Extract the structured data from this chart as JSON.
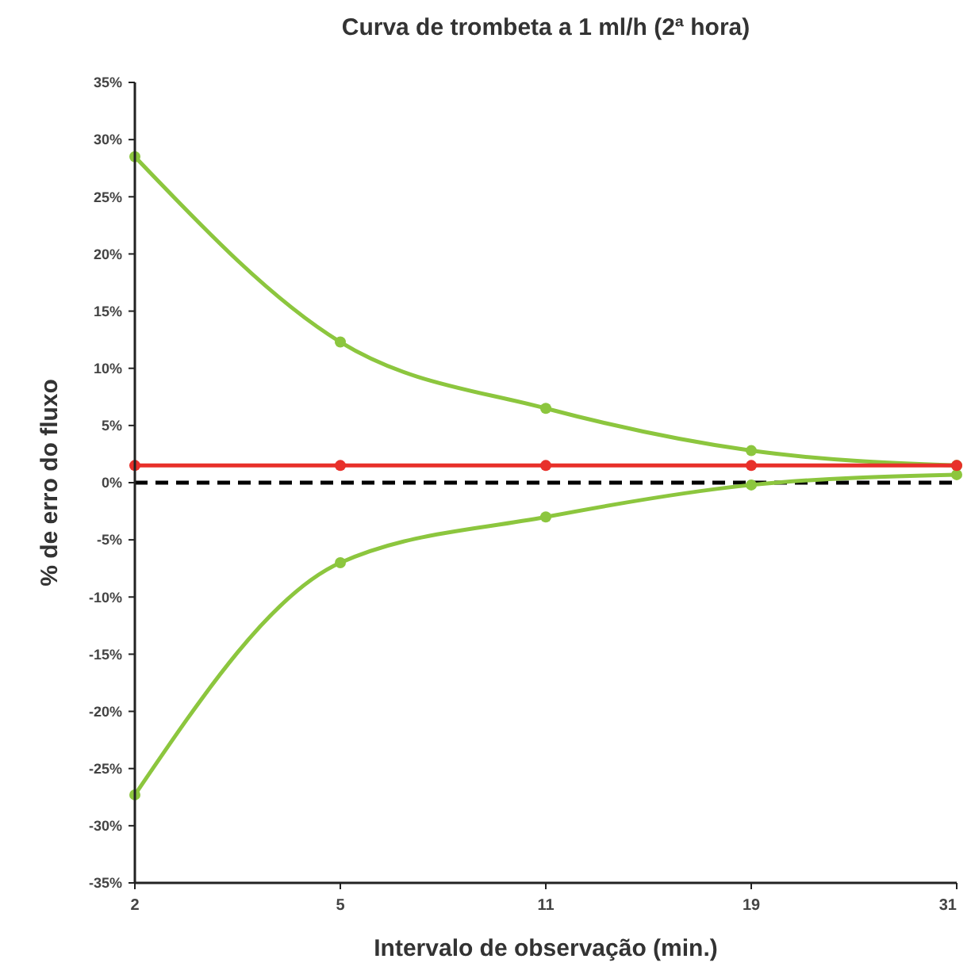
{
  "chart_data": {
    "type": "line",
    "title": "Curva de trombeta a 1 ml/h (2ª hora)",
    "xlabel": "Intervalo de observação (min.)",
    "ylabel": "% de erro do fluxo",
    "categories": [
      "2",
      "5",
      "11",
      "19",
      "31"
    ],
    "series": [
      {
        "color": "#8cc63e",
        "values": [
          28.5,
          12.3,
          6.5,
          2.8,
          1.5
        ]
      },
      {
        "color": "#8cc63e",
        "values": [
          -27.3,
          -7.0,
          -3.0,
          -0.2,
          0.7
        ]
      },
      {
        "color": "#e8302a",
        "values": [
          1.5,
          1.5,
          1.5,
          1.5,
          1.5
        ]
      }
    ],
    "ylim": [
      -35,
      35
    ],
    "yticks": [
      {
        "value": -35,
        "label": "-35%"
      },
      {
        "value": -30,
        "label": "-30%"
      },
      {
        "value": -25,
        "label": "-25%"
      },
      {
        "value": -20,
        "label": "-20%"
      },
      {
        "value": -15,
        "label": "-15%"
      },
      {
        "value": -10,
        "label": "-10%"
      },
      {
        "value": -5,
        "label": "-5%"
      },
      {
        "value": 0,
        "label": "0%"
      },
      {
        "value": 5,
        "label": "5%"
      },
      {
        "value": 10,
        "label": "10%"
      },
      {
        "value": 15,
        "label": "15%"
      },
      {
        "value": 20,
        "label": "20%"
      },
      {
        "value": 25,
        "label": "25%"
      },
      {
        "value": 30,
        "label": "30%"
      },
      {
        "value": 35,
        "label": "35%"
      }
    ],
    "ref_lines": [
      {
        "axis": "y",
        "value": 0,
        "color": "#000000",
        "line_style": "dashed"
      }
    ],
    "marker": "circle",
    "line_style": "solid",
    "grid": false
  }
}
